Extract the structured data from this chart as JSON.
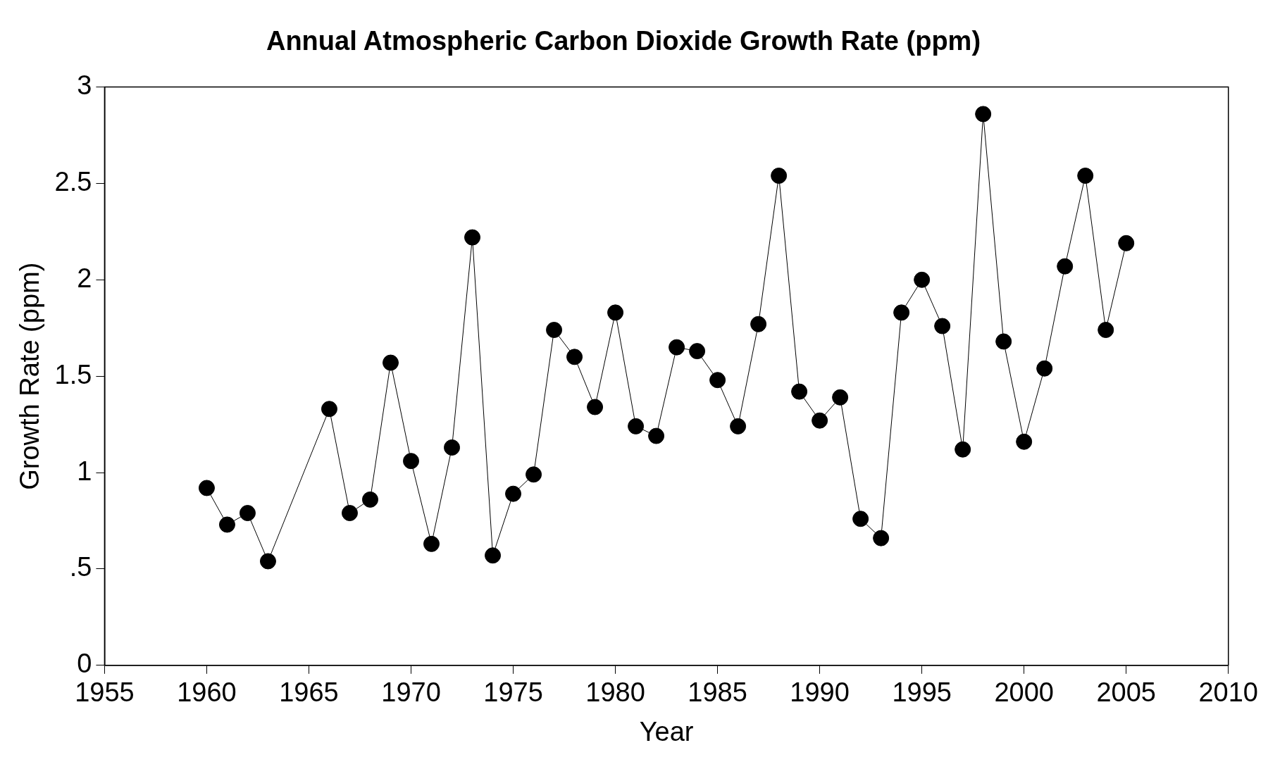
{
  "chart_data": {
    "type": "line",
    "title": "Annual Atmospheric Carbon Dioxide Growth Rate (ppm)",
    "xlabel": "Year",
    "ylabel": "Growth Rate (ppm)",
    "x": [
      1960,
      1961,
      1962,
      1963,
      1966,
      1967,
      1968,
      1969,
      1970,
      1971,
      1972,
      1973,
      1974,
      1975,
      1976,
      1977,
      1978,
      1979,
      1980,
      1981,
      1982,
      1983,
      1984,
      1985,
      1986,
      1987,
      1988,
      1989,
      1990,
      1991,
      1992,
      1993,
      1994,
      1995,
      1996,
      1997,
      1998,
      1999,
      2000,
      2001,
      2002,
      2003,
      2004,
      2005
    ],
    "series": [
      {
        "color": "#000000",
        "values": [
          0.92,
          0.73,
          0.79,
          0.54,
          1.33,
          0.79,
          0.86,
          1.57,
          1.06,
          0.63,
          1.13,
          2.22,
          0.57,
          0.89,
          0.99,
          1.74,
          1.6,
          1.34,
          1.83,
          1.24,
          1.19,
          1.65,
          1.63,
          1.48,
          1.24,
          1.77,
          2.54,
          1.42,
          1.27,
          1.39,
          0.76,
          0.66,
          1.83,
          2.0,
          1.76,
          1.12,
          2.86,
          1.68,
          1.16,
          1.54,
          2.07,
          2.54,
          1.74,
          2.19
        ]
      }
    ],
    "xlim": [
      1955,
      2010
    ],
    "xticks": [
      1955,
      1960,
      1965,
      1970,
      1975,
      1980,
      1985,
      1990,
      1995,
      2000,
      2005,
      2010
    ],
    "ylim": [
      0,
      3
    ],
    "yticks": [
      0,
      {
        "value": 0.5,
        "label": ".5"
      },
      1,
      1.5,
      2,
      2.5,
      3
    ],
    "grid": false,
    "legend": false,
    "marker": "circle",
    "line_style": "solid"
  }
}
